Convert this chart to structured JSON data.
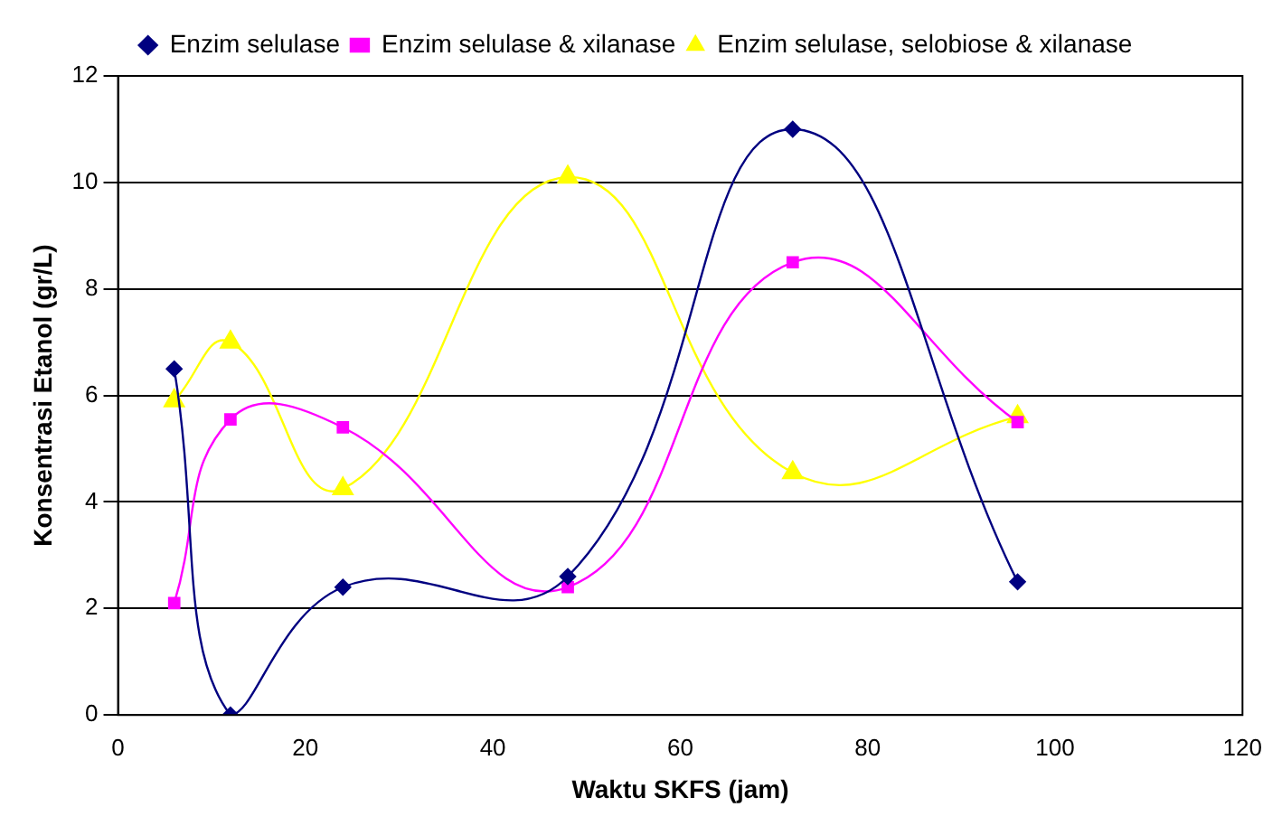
{
  "chart_data": {
    "type": "line",
    "xlabel": "Waktu SKFS (jam)",
    "ylabel": "Konsentrasi Etanol (gr/L)",
    "x": [
      6,
      12,
      24,
      48,
      72,
      96
    ],
    "series": [
      {
        "name": "Enzim selulase",
        "color": "#000080",
        "marker": "diamond",
        "values": [
          6.5,
          0,
          2.4,
          2.6,
          11,
          2.5
        ]
      },
      {
        "name": "Enzim selulase & xilanase",
        "color": "#ff00ff",
        "marker": "square",
        "values": [
          2.1,
          5.55,
          5.4,
          2.4,
          8.5,
          5.5
        ]
      },
      {
        "name": "Enzim selulase, selobiose & xilanase",
        "color": "#ffff00",
        "marker": "triangle",
        "values": [
          5.9,
          7,
          4.25,
          10.1,
          4.55,
          5.6
        ]
      }
    ],
    "xlim": [
      0,
      120
    ],
    "xticks": [
      0,
      20,
      40,
      60,
      80,
      100,
      120
    ],
    "ylim": [
      0,
      12
    ],
    "yticks": [
      0,
      2,
      4,
      6,
      8,
      10,
      12
    ],
    "grid": "y",
    "legend": "top"
  }
}
